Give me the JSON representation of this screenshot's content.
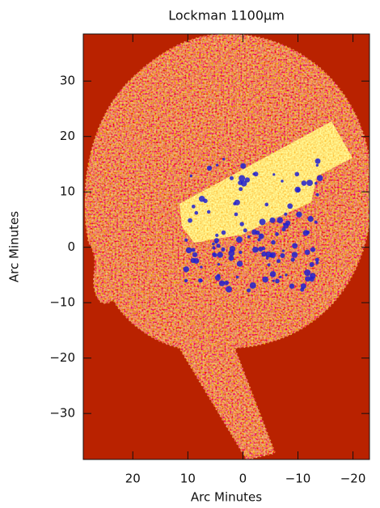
{
  "chart_data": {
    "type": "image-map",
    "title": "Lockman 1100μm",
    "xlabel": "Arc Minutes",
    "ylabel": "Arc Minutes",
    "xlim": [
      29,
      -23
    ],
    "ylim": [
      -38.3,
      38.5
    ],
    "xticks": [
      20,
      10,
      0,
      {
        "value": -10,
        "label": "−10"
      },
      {
        "value": -20,
        "label": "−20"
      }
    ],
    "yticks": [
      {
        "value": -30,
        "label": "−30"
      },
      {
        "value": -20,
        "label": "−20"
      },
      {
        "value": -10,
        "label": "−10"
      },
      0,
      10,
      20,
      30
    ]
  }
}
